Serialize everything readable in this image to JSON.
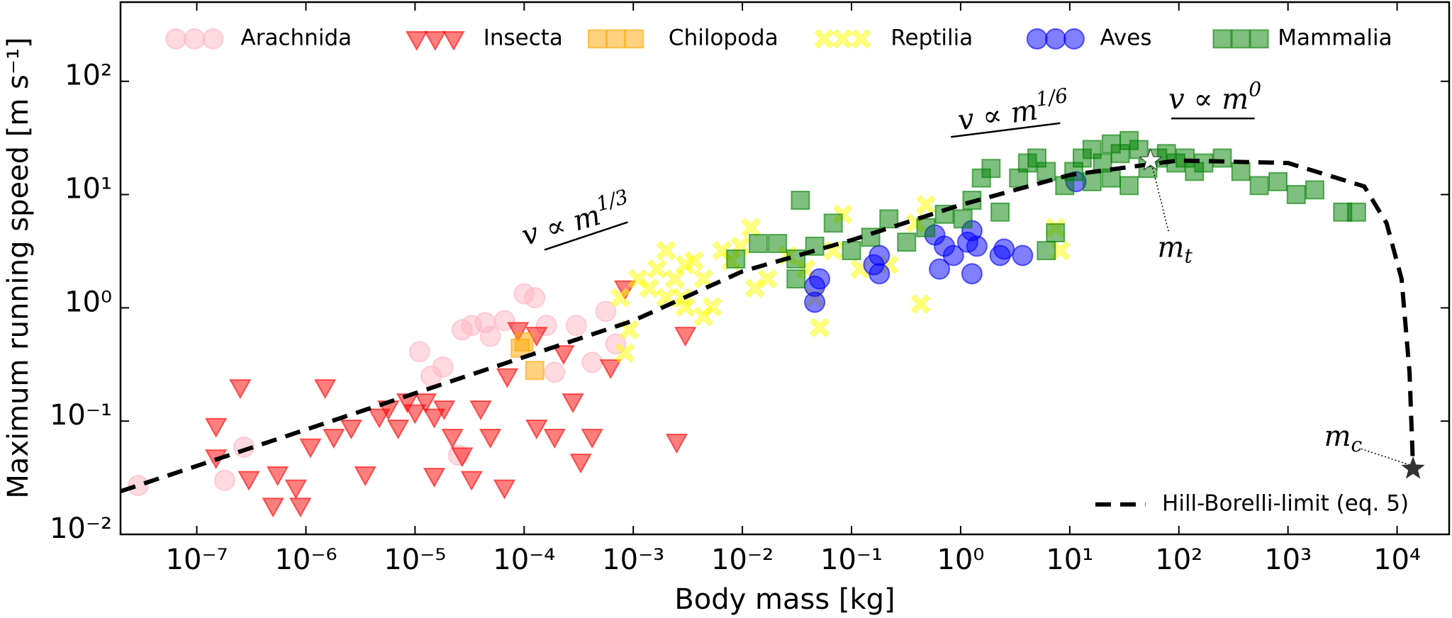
{
  "chart_data": {
    "type": "scatter",
    "x_label": "Body mass [kg]",
    "y_label": "Maximum running speed [m s⁻¹]",
    "xscale": "log",
    "yscale": "log",
    "xlim": [
      2e-08,
      30000
    ],
    "ylim": [
      0.01,
      500
    ],
    "xticks": [
      {
        "value": 1e-07,
        "label": "10⁻⁷"
      },
      {
        "value": 1e-06,
        "label": "10⁻⁶"
      },
      {
        "value": 1e-05,
        "label": "10⁻⁵"
      },
      {
        "value": 0.0001,
        "label": "10⁻⁴"
      },
      {
        "value": 0.001,
        "label": "10⁻³"
      },
      {
        "value": 0.01,
        "label": "10⁻²"
      },
      {
        "value": 0.1,
        "label": "10⁻¹"
      },
      {
        "value": 1,
        "label": "10⁰"
      },
      {
        "value": 10,
        "label": "10¹"
      },
      {
        "value": 100,
        "label": "10²"
      },
      {
        "value": 1000,
        "label": "10³"
      },
      {
        "value": 10000,
        "label": "10⁴"
      }
    ],
    "yticks": [
      {
        "value": 0.01,
        "label": "10⁻²"
      },
      {
        "value": 0.1,
        "label": "10⁻¹"
      },
      {
        "value": 1,
        "label": "10⁰"
      },
      {
        "value": 10,
        "label": "10¹"
      },
      {
        "value": 100,
        "label": "10²"
      }
    ],
    "legend": "upper center",
    "series": [
      {
        "name": "Arachnida",
        "marker": "circle",
        "color": "#ffb6c1",
        "x": [
          2.9e-08,
          1.8e-07,
          2.7e-07,
          1.1e-05,
          1.4e-05,
          1.8e-05,
          2.5e-05,
          2.7e-05,
          3.3e-05,
          4.4e-05,
          4.9e-05,
          6.6e-05,
          0.0001,
          0.000125,
          0.00016,
          0.00019,
          0.0003,
          0.00042,
          0.00056,
          0.00069
        ],
        "values": [
          0.027,
          0.03,
          0.059,
          0.41,
          0.25,
          0.3,
          0.05,
          0.64,
          0.7,
          0.74,
          0.56,
          0.77,
          1.33,
          1.23,
          0.7,
          0.27,
          0.7,
          0.33,
          0.93,
          0.48
        ]
      },
      {
        "name": "Insecta",
        "marker": "triangle-down",
        "color": "#ff0000",
        "x": [
          2.5e-07,
          1.5e-07,
          1.5e-07,
          3e-07,
          5e-07,
          5.5e-07,
          8.1e-07,
          8.9e-07,
          1.1e-06,
          1.5e-06,
          1.8e-06,
          2.6e-06,
          3.5e-06,
          4.7e-06,
          5.7e-06,
          7e-06,
          8.5e-06,
          1e-05,
          1.25e-05,
          1.5e-05,
          1.85e-05,
          2.2e-05,
          1.5e-05,
          2.7e-05,
          3.3e-05,
          4e-05,
          4.9e-05,
          6.6e-05,
          7e-05,
          8.8e-05,
          0.00013,
          0.00013,
          0.00019,
          0.00023,
          0.00028,
          0.00033,
          0.00042,
          0.00062,
          0.00084,
          0.003,
          0.0025
        ],
        "values": [
          0.2,
          0.091,
          0.048,
          0.031,
          0.018,
          0.034,
          0.026,
          0.018,
          0.06,
          0.2,
          0.073,
          0.088,
          0.034,
          0.11,
          0.13,
          0.088,
          0.15,
          0.12,
          0.15,
          0.11,
          0.13,
          0.073,
          0.033,
          0.05,
          0.031,
          0.13,
          0.073,
          0.026,
          0.25,
          0.64,
          0.58,
          0.088,
          0.073,
          0.4,
          0.15,
          0.044,
          0.073,
          0.3,
          1.49,
          0.58,
          0.066
        ]
      },
      {
        "name": "Chilopoda",
        "marker": "square",
        "color": "#ffa500",
        "x": [
          0.0001,
          0.000125,
          9.2e-05
        ],
        "values": [
          0.5,
          0.28,
          0.44
        ]
      },
      {
        "name": "Reptilia",
        "marker": "x",
        "color": "#ffff00",
        "x": [
          0.00084,
          0.00092,
          0.00076,
          0.0011,
          0.0014,
          0.00165,
          0.002,
          0.0024,
          0.003,
          0.0036,
          0.0044,
          0.0053,
          0.0065,
          0.0079,
          0.0096,
          0.012,
          0.003,
          0.0044,
          0.013,
          0.017,
          0.026,
          0.038,
          0.051,
          0.046,
          0.068,
          0.083,
          0.12,
          0.22,
          0.39,
          0.43,
          0.48,
          7.4,
          8.2,
          0.002,
          0.0028
        ],
        "values": [
          0.4,
          0.64,
          1.23,
          1.8,
          1.49,
          2.2,
          1.23,
          1.8,
          2.4,
          2.6,
          1.8,
          1.02,
          3.2,
          2.6,
          3.5,
          5.1,
          1.02,
          0.84,
          1.49,
          1.8,
          2.9,
          2.2,
          0.67,
          1.23,
          3.2,
          6.7,
          2.2,
          2.4,
          5.6,
          1.08,
          8.1,
          5.1,
          3.2,
          3.2,
          1.23
        ]
      },
      {
        "name": "Aves",
        "marker": "circle",
        "color": "#0000ff",
        "x": [
          0.046,
          0.046,
          0.051,
          0.16,
          0.18,
          0.18,
          0.58,
          0.64,
          0.71,
          0.86,
          1.16,
          1.27,
          1.41,
          1.27,
          2.3,
          2.5,
          3.7,
          11.4
        ],
        "values": [
          1.55,
          1.12,
          1.8,
          2.4,
          2.0,
          2.9,
          4.4,
          2.2,
          3.5,
          2.9,
          3.8,
          4.8,
          3.5,
          2.0,
          2.9,
          3.3,
          2.9,
          13
        ]
      },
      {
        "name": "Mammalia",
        "marker": "square",
        "color": "#008000",
        "x": [
          0.0087,
          0.014,
          0.021,
          0.031,
          0.034,
          0.031,
          0.046,
          0.068,
          0.1,
          0.15,
          0.22,
          0.32,
          0.48,
          0.71,
          1.05,
          1.27,
          1.55,
          1.9,
          2.3,
          3.4,
          4.1,
          5.0,
          6.1,
          9.0,
          10.9,
          13,
          16,
          20,
          24,
          29,
          35,
          43,
          52,
          64,
          77,
          94,
          114,
          139,
          169,
          250,
          370,
          545,
          810,
          1190,
          1760,
          3170,
          4250,
          6.1,
          7.4,
          24,
          35,
          16
        ],
        "values": [
          2.7,
          3.7,
          3.7,
          2.7,
          8.9,
          1.8,
          3.5,
          5.6,
          3.2,
          4.2,
          6.1,
          3.8,
          5.1,
          6.7,
          6.1,
          8.9,
          14,
          17,
          7.0,
          14,
          19,
          21,
          16,
          12,
          16,
          21,
          25,
          19,
          28,
          23,
          30,
          25,
          17,
          21,
          23,
          19,
          21,
          16,
          19,
          21,
          16,
          12,
          13,
          10,
          11,
          7.0,
          7.0,
          3.2,
          4.6,
          14,
          12,
          13
        ]
      },
      {
        "name": "Hill-Borelli-limit (eq. 5)",
        "type": "line",
        "dash": true,
        "color": "#000000",
        "x": [
          2e-08,
          0.001,
          0.01,
          0.1,
          1,
          10,
          100,
          1000,
          5000,
          8000,
          11000,
          13000,
          14000
        ],
        "values": [
          0.024,
          0.77,
          2.1,
          3.96,
          8.1,
          14.9,
          20,
          19,
          11.8,
          5.6,
          1.8,
          0.27,
          0.038
        ]
      }
    ],
    "annotations": [
      {
        "text": "v ∝ m",
        "sup": "1/3"
      },
      {
        "text": "v ∝ m",
        "sup": "1/6"
      },
      {
        "text": "v ∝ m",
        "sup": "0"
      },
      {
        "text": "m",
        "sub": "t",
        "x": 55,
        "y": 20,
        "color": "#ffffff"
      },
      {
        "text": "m",
        "sub": "c",
        "x": 14000,
        "y": 0.038,
        "color": "#333333"
      }
    ]
  }
}
